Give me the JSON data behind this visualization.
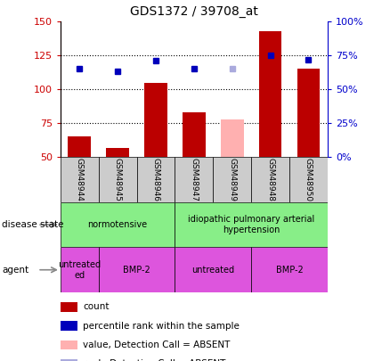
{
  "title": "GDS1372 / 39708_at",
  "samples": [
    "GSM48944",
    "GSM48945",
    "GSM48946",
    "GSM48947",
    "GSM48949",
    "GSM48948",
    "GSM48950"
  ],
  "count_values": [
    65,
    57,
    105,
    83,
    78,
    143,
    115
  ],
  "count_absent": [
    false,
    false,
    false,
    false,
    true,
    false,
    false
  ],
  "rank_values": [
    65,
    63,
    71,
    65,
    65,
    75,
    72
  ],
  "rank_absent": [
    false,
    false,
    false,
    false,
    true,
    false,
    false
  ],
  "ylim_left": [
    50,
    150
  ],
  "ylim_right": [
    0,
    100
  ],
  "yticks_left": [
    50,
    75,
    100,
    125,
    150
  ],
  "ytick_labels_left": [
    "50",
    "75",
    "100",
    "125",
    "150"
  ],
  "yticks_right": [
    0,
    25,
    50,
    75,
    100
  ],
  "ytick_labels_right": [
    "0%",
    "25%",
    "50%",
    "75%",
    "100%"
  ],
  "bar_color": "#BB0000",
  "bar_color_absent": "#FFB0B0",
  "dot_color": "#0000BB",
  "dot_color_absent": "#AAAADD",
  "axis_left_color": "#CC0000",
  "axis_right_color": "#0000CC",
  "grid_dotted_at": [
    75,
    100,
    125
  ],
  "ds_groups": [
    {
      "label": "normotensive",
      "start": 0,
      "end": 2
    },
    {
      "label": "idiopathic pulmonary arterial\nhypertension",
      "start": 3,
      "end": 6
    }
  ],
  "ds_color": "#88EE88",
  "ag_groups": [
    {
      "label": "untreated\ned",
      "start": 0,
      "end": 0
    },
    {
      "label": "BMP-2",
      "start": 1,
      "end": 2
    },
    {
      "label": "untreated",
      "start": 3,
      "end": 4
    },
    {
      "label": "BMP-2",
      "start": 5,
      "end": 6
    }
  ],
  "ag_color": "#DD55DD",
  "sample_box_color": "#CCCCCC",
  "legend_items": [
    {
      "label": "count",
      "color": "#BB0000"
    },
    {
      "label": "percentile rank within the sample",
      "color": "#0000BB"
    },
    {
      "label": "value, Detection Call = ABSENT",
      "color": "#FFB0B0"
    },
    {
      "label": "rank, Detection Call = ABSENT",
      "color": "#AAAADD"
    }
  ]
}
